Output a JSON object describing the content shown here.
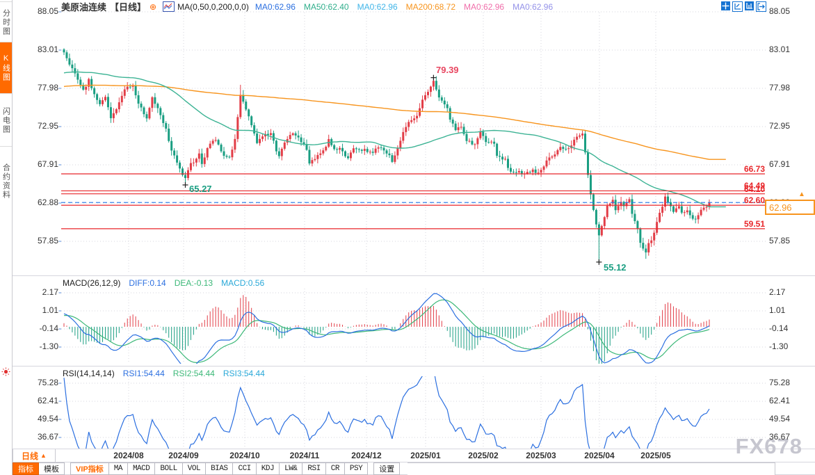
{
  "header": {
    "symbol": "美原油连续",
    "symbol_color": "#2257c4",
    "period": "【日线】",
    "period_color": "#ff6600",
    "plus_glyph": "⊕",
    "ma_settings": "MA(0,50,0,200,0,0)",
    "ma_values": [
      {
        "label": "MA0:62.96",
        "color": "#2b6fe0"
      },
      {
        "label": "MA50:62.40",
        "color": "#2fae8b"
      },
      {
        "label": "MA0:62.96",
        "color": "#41b5e8"
      },
      {
        "label": "MA200:68.72",
        "color": "#f7941d"
      },
      {
        "label": "MA0:62.96",
        "color": "#f06eaa"
      },
      {
        "label": "MA0:62.96",
        "color": "#9391e8"
      }
    ],
    "window_icons": [
      "move-icon",
      "axis-zoom-icon",
      "axis-bar-icon",
      "pop-out-icon"
    ]
  },
  "sidebar": {
    "tabs": [
      {
        "label": "分时图",
        "active": false
      },
      {
        "label": "K线图",
        "active": true
      },
      {
        "label": "闪电图",
        "active": false
      },
      {
        "label": "合约资料",
        "active": false
      }
    ],
    "alarm_icon": "alarm-icon"
  },
  "axes": {
    "main": {
      "labels": [
        "88.05",
        "83.01",
        "77.98",
        "72.95",
        "67.91",
        "62.88",
        "57.85"
      ]
    },
    "macd": {
      "labels": [
        "2.17",
        "1.01",
        "-0.14",
        "-1.30"
      ]
    },
    "rsi": {
      "labels": [
        "75.28",
        "62.41",
        "49.54",
        "36.67"
      ]
    }
  },
  "macd_header": {
    "title": "MACD(26,12,9)",
    "values": [
      {
        "label": "DIFF:0.14",
        "color": "#2b6fe0"
      },
      {
        "label": "DEA:-0.13",
        "color": "#3cb878"
      },
      {
        "label": "MACD:0.56",
        "color": "#29a8d8"
      }
    ]
  },
  "rsi_header": {
    "title": "RSI(14,14,14)",
    "values": [
      {
        "label": "RSI1:54.44",
        "color": "#2b6fe0"
      },
      {
        "label": "RSI2:54.44",
        "color": "#3cb878"
      },
      {
        "label": "RSI3:54.44",
        "color": "#29a8d8"
      }
    ]
  },
  "levels": [
    {
      "price": "66.73",
      "value": 66.73
    },
    {
      "price": "64.49",
      "value": 64.49
    },
    {
      "price": "64.10",
      "value": 64.1
    },
    {
      "price": "62.60",
      "value": 62.6
    },
    {
      "price": "59.51",
      "value": 59.51
    }
  ],
  "annotations": {
    "high": "79.39",
    "sep_low": "65.27",
    "apr_low": "55.12"
  },
  "price_tag": {
    "value": "62.96",
    "arrow": "▲"
  },
  "timeline": {
    "period_label": "日线",
    "period_arrow": "▲",
    "dates": [
      "2024/08",
      "2024/09",
      "2024/10",
      "2024/11",
      "2024/12",
      "2025/01",
      "2025/02",
      "2025/03",
      "2025/04",
      "2025/05"
    ]
  },
  "toolbar": {
    "buttons": [
      {
        "label": "指标",
        "style": "active"
      },
      {
        "label": "模板",
        "style": "cn"
      },
      {
        "label": "VIP指标",
        "style": "vip"
      },
      {
        "label": "MA",
        "style": "mono"
      },
      {
        "label": "MACD",
        "style": "mono"
      },
      {
        "label": "BOLL",
        "style": "mono"
      },
      {
        "label": "VOL",
        "style": "mono"
      },
      {
        "label": "BIAS",
        "style": "mono"
      },
      {
        "label": "CCI",
        "style": "mono"
      },
      {
        "label": "KDJ",
        "style": "mono"
      },
      {
        "label": "LW&",
        "style": "mono"
      },
      {
        "label": "RSI",
        "style": "mono"
      },
      {
        "label": "CR",
        "style": "mono"
      },
      {
        "label": "PSY",
        "style": "mono"
      },
      {
        "label": "设置",
        "style": "cn gap"
      }
    ]
  },
  "watermark": "FX678",
  "colors": {
    "up": "#e23d47",
    "down": "#1a9e82",
    "ma50": "#3cb394",
    "ma200": "#f7941d",
    "level_line": "#e8262a",
    "last_price_line": "#2176e8",
    "diff_line": "#2b6fe0",
    "dea_line": "#3cb878",
    "rsi_line": "#2b6fe0",
    "grid": "#d4d4dc",
    "annotation_high": "#e8455f",
    "annotation_low": "#1a9e82"
  },
  "chart_data": {
    "type": "candlestick",
    "symbol": "美原油连续",
    "interval": "日线",
    "panels": [
      "price: K-line + MA50 + MA200",
      "MACD(26,12,9)",
      "RSI(14,14,14)"
    ],
    "x_axis": {
      "month_labels": [
        "2024/08",
        "2024/09",
        "2024/10",
        "2024/11",
        "2024/12",
        "2025/01",
        "2025/02",
        "2025/03",
        "2025/04",
        "2025/05"
      ],
      "visible_days": 235
    },
    "price_ticks": [
      88.05,
      83.01,
      77.98,
      72.95,
      67.91,
      62.88,
      57.85
    ],
    "macd_ticks": [
      2.17,
      1.01,
      -0.14,
      -1.3
    ],
    "rsi_ticks": [
      75.28,
      62.41,
      49.54,
      36.67
    ],
    "key_levels": [
      66.73,
      64.49,
      64.1,
      62.6,
      59.51
    ],
    "last_price": 62.96,
    "ma_values": {
      "ma50": 62.4,
      "ma200": 68.72
    },
    "marked_points": {
      "high": {
        "day": 134,
        "price": 79.39
      },
      "sep_low": {
        "day": 44,
        "price": 65.27
      },
      "apr_low": {
        "day": 194,
        "price": 55.12
      }
    },
    "indicator_values": {
      "diff": 0.14,
      "dea": -0.13,
      "macd": 0.56,
      "rsi1": 54.44,
      "rsi2": 54.44,
      "rsi3": 54.44
    },
    "price_path": [
      [
        0,
        82.8
      ],
      [
        2,
        81.3
      ],
      [
        5,
        79.0
      ],
      [
        7,
        77.6
      ],
      [
        9,
        79.0
      ],
      [
        11,
        77.2
      ],
      [
        13,
        75.8
      ],
      [
        15,
        76.8
      ],
      [
        17,
        74.0
      ],
      [
        20,
        76.0
      ],
      [
        22,
        78.0
      ],
      [
        25,
        78.3
      ],
      [
        27,
        75.8
      ],
      [
        30,
        74.2
      ],
      [
        32,
        76.8
      ],
      [
        34,
        75.2
      ],
      [
        37,
        72.5
      ],
      [
        39,
        69.8
      ],
      [
        42,
        67.3
      ],
      [
        44,
        66.0
      ],
      [
        46,
        68.0
      ],
      [
        49,
        69.3
      ],
      [
        50,
        68.2
      ],
      [
        53,
        70.8
      ],
      [
        55,
        71.3
      ],
      [
        57,
        69.6
      ],
      [
        60,
        68.7
      ],
      [
        62,
        71.5
      ],
      [
        64,
        77.0
      ],
      [
        66,
        75.3
      ],
      [
        68,
        73.3
      ],
      [
        70,
        70.8
      ],
      [
        72,
        71.8
      ],
      [
        75,
        72.0
      ],
      [
        77,
        69.9
      ],
      [
        78,
        69.2
      ],
      [
        81,
        71.4
      ],
      [
        83,
        72.0
      ],
      [
        85,
        71.7
      ],
      [
        88,
        69.8
      ],
      [
        89,
        68.2
      ],
      [
        92,
        69.2
      ],
      [
        94,
        69.7
      ],
      [
        96,
        71.2
      ],
      [
        98,
        70.1
      ],
      [
        101,
        69.9
      ],
      [
        103,
        68.6
      ],
      [
        105,
        70.1
      ],
      [
        107,
        69.8
      ],
      [
        109,
        70.0
      ],
      [
        112,
        69.4
      ],
      [
        114,
        70.4
      ],
      [
        117,
        69.6
      ],
      [
        119,
        68.4
      ],
      [
        121,
        70.2
      ],
      [
        123,
        72.1
      ],
      [
        125,
        73.4
      ],
      [
        128,
        74.2
      ],
      [
        130,
        76.4
      ],
      [
        132,
        77.6
      ],
      [
        134,
        78.9
      ],
      [
        136,
        76.9
      ],
      [
        139,
        75.3
      ],
      [
        140,
        73.9
      ],
      [
        142,
        72.6
      ],
      [
        144,
        72.9
      ],
      [
        146,
        71.1
      ],
      [
        149,
        70.6
      ],
      [
        151,
        72.2
      ],
      [
        153,
        71.1
      ],
      [
        156,
        70.6
      ],
      [
        157,
        69.1
      ],
      [
        160,
        68.5
      ],
      [
        162,
        66.9
      ],
      [
        165,
        67.1
      ],
      [
        167,
        66.6
      ],
      [
        170,
        67.1
      ],
      [
        172,
        66.9
      ],
      [
        175,
        68.4
      ],
      [
        178,
        69.5
      ],
      [
        180,
        70.2
      ],
      [
        183,
        69.9
      ],
      [
        185,
        71.2
      ],
      [
        188,
        72.2
      ],
      [
        189,
        69.5
      ],
      [
        191,
        64.0
      ],
      [
        193,
        60.0
      ],
      [
        194,
        58.5
      ],
      [
        196,
        61.0
      ],
      [
        197,
        62.4
      ],
      [
        199,
        63.2
      ],
      [
        200,
        61.9
      ],
      [
        202,
        63.0
      ],
      [
        203,
        62.4
      ],
      [
        205,
        63.3
      ],
      [
        206,
        61.3
      ],
      [
        208,
        59.4
      ],
      [
        209,
        57.6
      ],
      [
        211,
        56.5
      ],
      [
        212,
        57.4
      ],
      [
        214,
        58.8
      ],
      [
        215,
        60.6
      ],
      [
        217,
        62.4
      ],
      [
        218,
        63.6
      ],
      [
        220,
        62.6
      ],
      [
        221,
        61.8
      ],
      [
        223,
        62.4
      ],
      [
        224,
        61.7
      ],
      [
        226,
        62.0
      ],
      [
        227,
        61.1
      ],
      [
        229,
        60.9
      ],
      [
        231,
        61.9
      ],
      [
        232,
        62.5
      ],
      [
        233,
        62.3
      ],
      [
        234,
        62.96
      ]
    ],
    "prehistory": [
      [
        -200,
        76.0
      ],
      [
        -160,
        78.5
      ],
      [
        -120,
        76.5
      ],
      [
        -80,
        78.0
      ],
      [
        -50,
        79.5
      ],
      [
        -30,
        78.5
      ],
      [
        -15,
        80.5
      ],
      [
        -5,
        82.0
      ],
      [
        -1,
        82.9
      ]
    ]
  }
}
